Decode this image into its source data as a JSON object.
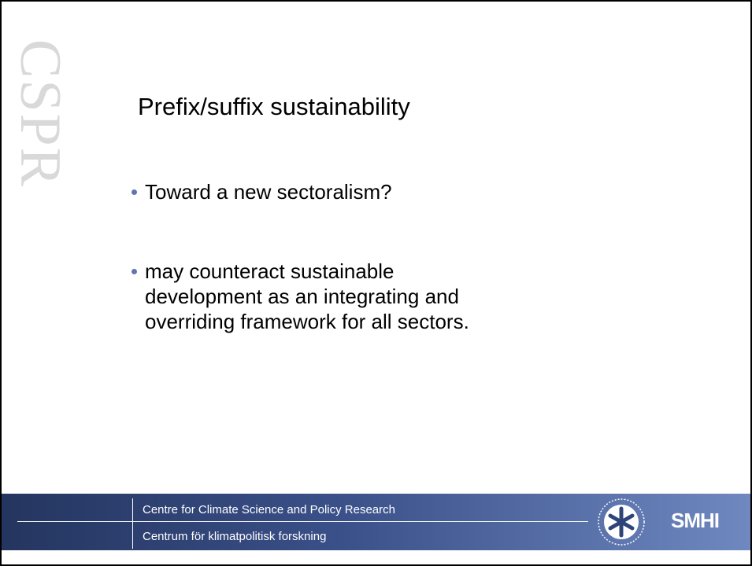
{
  "side_mark": "CSPR",
  "title": "Prefix/suffix sustainability",
  "bullets": [
    {
      "lines": [
        "Toward a new sectoralism?"
      ]
    },
    {
      "lines": [
        "may counteract sustainable",
        "development as an integrating and",
        "overriding framework for all sectors."
      ]
    }
  ],
  "footer": {
    "line1": "Centre for Climate Science and Policy Research",
    "line2": "Centrum för klimatpolitisk forskning",
    "logo_text": "SMHI"
  }
}
